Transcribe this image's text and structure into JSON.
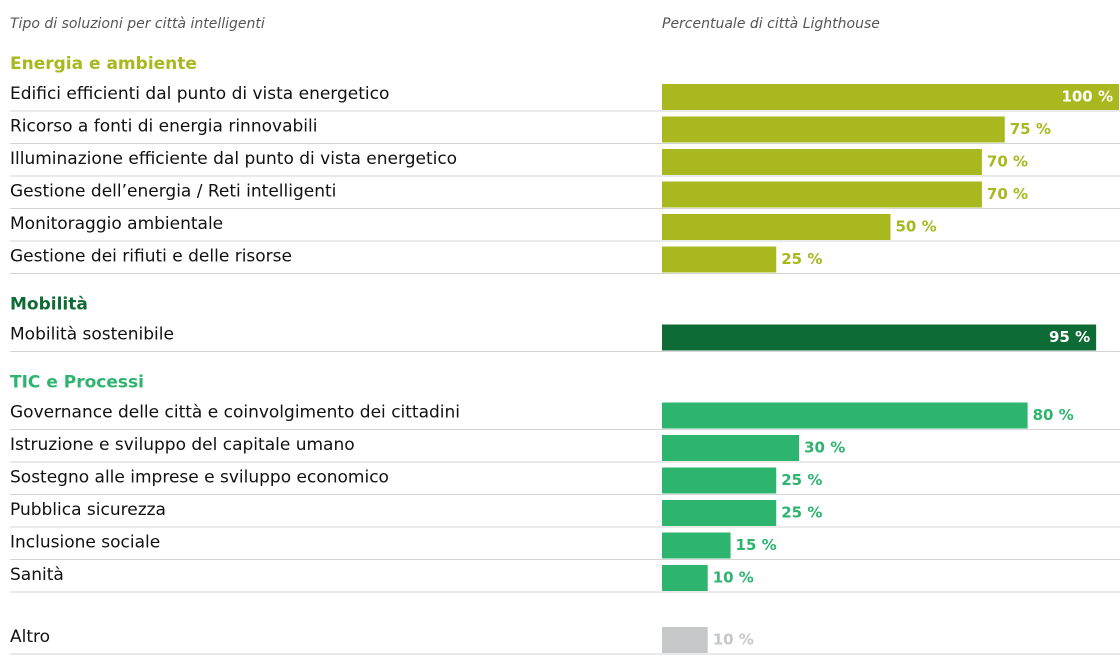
{
  "chart_data": {
    "type": "bar",
    "left_header": "Tipo di soluzioni per città intelligenti",
    "right_header": "Percentuale di città Lighthouse",
    "xlim": [
      0,
      100
    ],
    "groups": [
      {
        "name": "Energia e ambiente",
        "color": "#a9b81f",
        "categories": [
          "Edifici efficienti dal punto di vista energetico",
          "Ricorso a fonti di energia rinnovabili",
          "Illuminazione efficiente dal punto di vista energetico",
          "Gestione dell’energia / Reti intelligenti",
          "Monitoraggio ambientale",
          "Gestione dei rifiuti e delle risorse"
        ],
        "values": [
          100,
          75,
          70,
          70,
          50,
          25
        ],
        "value_labels": [
          "100 %",
          "75 %",
          "70 %",
          "70 %",
          "50 %",
          "25 %"
        ]
      },
      {
        "name": "Mobilità",
        "color": "#0f6b36",
        "categories": [
          "Mobilità sostenibile"
        ],
        "values": [
          95
        ],
        "value_labels": [
          "95 %"
        ]
      },
      {
        "name": "TIC e Processi",
        "color": "#2db46e",
        "categories": [
          "Governance delle città e coinvolgimento dei cittadini",
          "Istruzione e sviluppo del capitale umano",
          "Sostegno alle imprese e sviluppo economico",
          "Pubblica sicurezza",
          "Inclusione sociale",
          "Sanità"
        ],
        "values": [
          80,
          30,
          25,
          25,
          15,
          10
        ],
        "value_labels": [
          "80 %",
          "30 %",
          "25 %",
          "25 %",
          "15 %",
          "10 %"
        ]
      },
      {
        "color": "#c5c7c9",
        "categories": [
          "Altro"
        ],
        "values": [
          10
        ],
        "value_labels": [
          "10 %"
        ]
      }
    ]
  }
}
